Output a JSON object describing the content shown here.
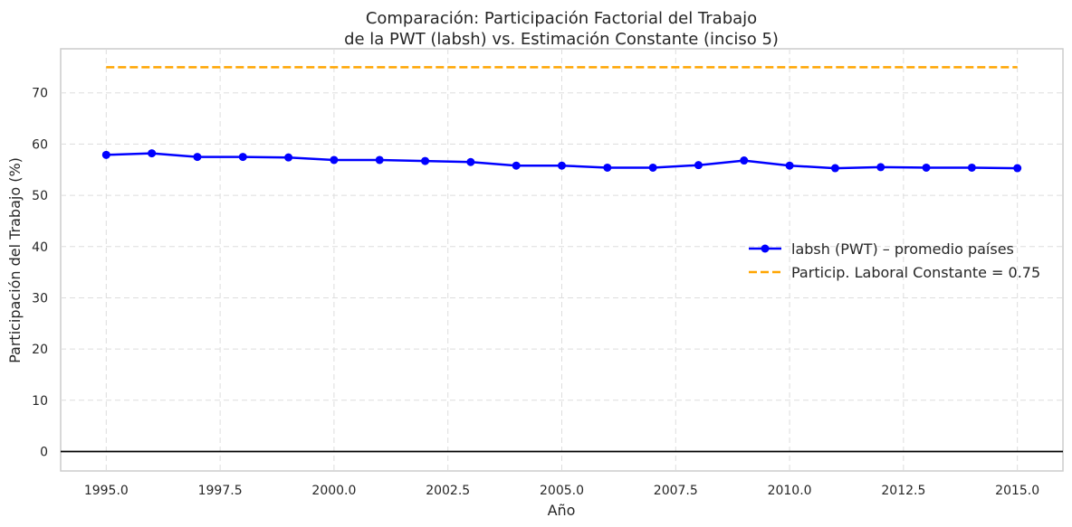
{
  "chart_data": {
    "type": "line",
    "title_lines": [
      "Comparación: Participación Factorial del Trabajo",
      "de la PWT (labsh) vs. Estimación Constante (inciso 5)"
    ],
    "xlabel": "Año",
    "ylabel": "Participación del Trabajo (%)",
    "xlim": [
      1994.0,
      2016.0
    ],
    "ylim": [
      -3.8,
      78.6
    ],
    "x_ticks": [
      1995.0,
      1997.5,
      2000.0,
      2002.5,
      2005.0,
      2007.5,
      2010.0,
      2012.5,
      2015.0
    ],
    "x_tick_labels": [
      "1995.0",
      "1997.5",
      "2000.0",
      "2002.5",
      "2005.0",
      "2007.5",
      "2010.0",
      "2012.5",
      "2015.0"
    ],
    "y_ticks": [
      0,
      10,
      20,
      30,
      40,
      50,
      60,
      70
    ],
    "y_tick_labels": [
      "0",
      "10",
      "20",
      "30",
      "40",
      "50",
      "60",
      "70"
    ],
    "grid": true,
    "legend_position": "center-right",
    "zero_line": 0,
    "x": [
      1995,
      1996,
      1997,
      1998,
      1999,
      2000,
      2001,
      2002,
      2003,
      2004,
      2005,
      2006,
      2007,
      2008,
      2009,
      2010,
      2011,
      2012,
      2013,
      2014,
      2015
    ],
    "series": [
      {
        "name": "labsh (PWT) – promedio países",
        "style": "solid-marker",
        "color": "#0000ff",
        "values": [
          57.9,
          58.2,
          57.5,
          57.5,
          57.4,
          56.9,
          56.9,
          56.7,
          56.5,
          55.8,
          55.8,
          55.4,
          55.4,
          55.9,
          56.8,
          55.8,
          55.3,
          55.5,
          55.4,
          55.4,
          55.3
        ]
      },
      {
        "name": "Particip. Laboral Constante = 0.75",
        "style": "dashed",
        "color": "#ffa500",
        "values": [
          75,
          75,
          75,
          75,
          75,
          75,
          75,
          75,
          75,
          75,
          75,
          75,
          75,
          75,
          75,
          75,
          75,
          75,
          75,
          75,
          75
        ]
      }
    ]
  }
}
